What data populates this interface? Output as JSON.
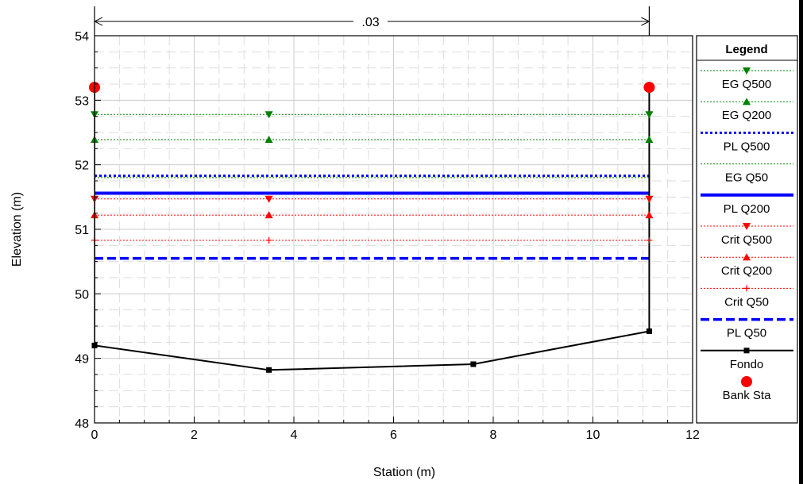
{
  "chart_data": {
    "type": "line",
    "xlabel": "Station (m)",
    "ylabel": "Elevation (m)",
    "xlim": [
      0,
      12
    ],
    "ylim": [
      48,
      54
    ],
    "x_ticks": [
      0,
      2,
      4,
      6,
      8,
      10,
      12
    ],
    "y_ticks": [
      48,
      49,
      50,
      51,
      52,
      53,
      54
    ],
    "grid": true,
    "legend_position": "right",
    "legend_title": "Legend",
    "dimension_annotation": {
      "label": ".03",
      "x_from": 0,
      "x_to": 11.13
    },
    "series": [
      {
        "name": "EG Q500",
        "color": "#008000",
        "style": "dotted-thin",
        "marker": "triangle-down",
        "x": [
          0,
          11.13
        ],
        "y": [
          52.78,
          52.78
        ],
        "marker_x": [
          0,
          3.5,
          11.13
        ]
      },
      {
        "name": "EG Q200",
        "color": "#008000",
        "style": "dotted-thin",
        "marker": "triangle-up",
        "x": [
          0,
          11.13
        ],
        "y": [
          52.39,
          52.39
        ],
        "marker_x": [
          0,
          3.5,
          11.13
        ]
      },
      {
        "name": "PL Q500",
        "color": "#0000ff",
        "style": "dotted-thick",
        "marker": "none",
        "x": [
          0,
          11.13
        ],
        "y": [
          51.83,
          51.83
        ],
        "marker_x": []
      },
      {
        "name": "EG Q50",
        "color": "#008000",
        "style": "dotted-thin",
        "marker": "none",
        "x": [
          0,
          11.13
        ],
        "y": [
          51.8,
          51.8
        ],
        "marker_x": []
      },
      {
        "name": "PL Q200",
        "color": "#0000ff",
        "style": "solid-thick",
        "marker": "none",
        "x": [
          0,
          11.13
        ],
        "y": [
          51.56,
          51.56
        ],
        "marker_x": []
      },
      {
        "name": "Crit Q500",
        "color": "#ff0000",
        "style": "dotted-thin",
        "marker": "triangle-down",
        "x": [
          0,
          11.13
        ],
        "y": [
          51.47,
          51.47
        ],
        "marker_x": [
          0,
          3.5,
          11.13
        ]
      },
      {
        "name": "Crit Q200",
        "color": "#ff0000",
        "style": "dotted-thin",
        "marker": "triangle-up",
        "x": [
          0,
          11.13
        ],
        "y": [
          51.22,
          51.22
        ],
        "marker_x": [
          0,
          3.5,
          11.13
        ]
      },
      {
        "name": "Crit Q50",
        "color": "#ff0000",
        "style": "dotted-thin",
        "marker": "plus",
        "x": [
          0,
          11.13
        ],
        "y": [
          50.83,
          50.83
        ],
        "marker_x": [
          0,
          3.5,
          11.13
        ]
      },
      {
        "name": "PL Q50",
        "color": "#0000ff",
        "style": "dashed-thick",
        "marker": "none",
        "x": [
          0,
          11.13
        ],
        "y": [
          50.55,
          50.55
        ],
        "marker_x": []
      },
      {
        "name": "Fondo",
        "color": "#000000",
        "style": "solid",
        "marker": "square",
        "x": [
          0,
          0,
          3.5,
          7.6,
          11.13,
          11.13
        ],
        "y": [
          53.2,
          49.2,
          48.82,
          48.91,
          49.42,
          53.2
        ],
        "marker_x": [
          0,
          3.5,
          7.6,
          11.13
        ]
      },
      {
        "name": "Bank Sta",
        "color": "#ff0000",
        "style": "none",
        "marker": "circle",
        "x": [
          0,
          11.13
        ],
        "y": [
          53.2,
          53.2
        ],
        "marker_x": [
          0,
          11.13
        ]
      }
    ]
  }
}
